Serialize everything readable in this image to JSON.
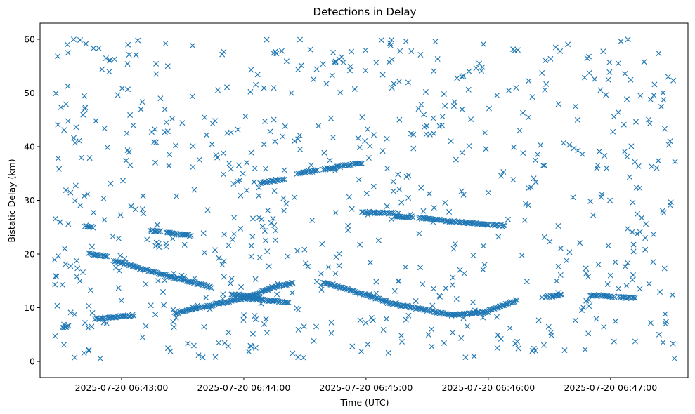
{
  "chart_data": {
    "type": "scatter",
    "title": "Detections in Delay",
    "xlabel": "Time (UTC)",
    "ylabel": "Bistatic Delay (km)",
    "marker": "x",
    "color": "#1f77b4",
    "grid": false,
    "legend": null,
    "x_start": "2025-07-20 06:42:26",
    "x_end": "2025-07-20 06:47:32",
    "xlim": [
      "2025-07-20 06:42:20",
      "2025-07-20 06:47:38"
    ],
    "ylim": [
      -3,
      63
    ],
    "xticks": [
      {
        "value": "2025-07-20 06:43:00",
        "label": "2025-07-20 06:43:00"
      },
      {
        "value": "2025-07-20 06:44:00",
        "label": "2025-07-20 06:44:00"
      },
      {
        "value": "2025-07-20 06:45:00",
        "label": "2025-07-20 06:45:00"
      },
      {
        "value": "2025-07-20 06:46:00",
        "label": "2025-07-20 06:46:00"
      },
      {
        "value": "2025-07-20 06:47:00",
        "label": "2025-07-20 06:47:00"
      }
    ],
    "yticks": [
      0,
      10,
      20,
      30,
      40,
      50,
      60
    ],
    "tracks": [
      {
        "from": "2025-07-20 06:42:31",
        "to": "2025-07-20 06:42:34",
        "y0": 6.2,
        "y1": 6.6
      },
      {
        "from": "2025-07-20 06:42:42",
        "to": "2025-07-20 06:42:46",
        "y0": 25.2,
        "y1": 25.0
      },
      {
        "from": "2025-07-20 06:42:44",
        "to": "2025-07-20 06:42:53",
        "y0": 20.2,
        "y1": 19.4
      },
      {
        "from": "2025-07-20 06:42:47",
        "to": "2025-07-20 06:43:06",
        "y0": 7.9,
        "y1": 8.6
      },
      {
        "from": "2025-07-20 06:42:56",
        "to": "2025-07-20 06:43:06",
        "y0": 18.7,
        "y1": 17.8
      },
      {
        "from": "2025-07-20 06:43:06",
        "to": "2025-07-20 06:43:44",
        "y0": 17.6,
        "y1": 13.8
      },
      {
        "from": "2025-07-20 06:43:14",
        "to": "2025-07-20 06:43:19",
        "y0": 24.4,
        "y1": 24.2
      },
      {
        "from": "2025-07-20 06:43:22",
        "to": "2025-07-20 06:43:34",
        "y0": 24.0,
        "y1": 23.4
      },
      {
        "from": "2025-07-20 06:43:26",
        "to": "2025-07-20 06:44:00",
        "y0": 9.0,
        "y1": 11.8
      },
      {
        "from": "2025-07-20 06:43:54",
        "to": "2025-07-20 06:44:08",
        "y0": 12.6,
        "y1": 11.8
      },
      {
        "from": "2025-07-20 06:44:00",
        "to": "2025-07-20 06:44:22",
        "y0": 11.8,
        "y1": 11.0
      },
      {
        "from": "2025-07-20 06:44:02",
        "to": "2025-07-20 06:44:12",
        "y0": 12.0,
        "y1": 13.4
      },
      {
        "from": "2025-07-20 06:44:12",
        "to": "2025-07-20 06:44:24",
        "y0": 13.6,
        "y1": 14.6
      },
      {
        "from": "2025-07-20 06:44:08",
        "to": "2025-07-20 06:44:20",
        "y0": 33.2,
        "y1": 34.0
      },
      {
        "from": "2025-07-20 06:44:26",
        "to": "2025-07-20 06:44:36",
        "y0": 35.0,
        "y1": 35.6
      },
      {
        "from": "2025-07-20 06:44:39",
        "to": "2025-07-20 06:44:58",
        "y0": 35.8,
        "y1": 37.0
      },
      {
        "from": "2025-07-20 06:44:39",
        "to": "2025-07-20 06:45:10",
        "y0": 14.8,
        "y1": 11.2
      },
      {
        "from": "2025-07-20 06:45:10",
        "to": "2025-07-20 06:45:42",
        "y0": 11.0,
        "y1": 8.6
      },
      {
        "from": "2025-07-20 06:44:58",
        "to": "2025-07-20 06:45:14",
        "y0": 27.8,
        "y1": 27.6
      },
      {
        "from": "2025-07-20 06:45:14",
        "to": "2025-07-20 06:45:23",
        "y0": 27.0,
        "y1": 26.9
      },
      {
        "from": "2025-07-20 06:45:26",
        "to": "2025-07-20 06:46:00",
        "y0": 26.7,
        "y1": 25.4
      },
      {
        "from": "2025-07-20 06:46:02",
        "to": "2025-07-20 06:46:08",
        "y0": 25.4,
        "y1": 25.2
      },
      {
        "from": "2025-07-20 06:45:42",
        "to": "2025-07-20 06:46:00",
        "y0": 8.6,
        "y1": 9.2
      },
      {
        "from": "2025-07-20 06:46:00",
        "to": "2025-07-20 06:46:14",
        "y0": 9.4,
        "y1": 11.4
      },
      {
        "from": "2025-07-20 06:46:28",
        "to": "2025-07-20 06:46:36",
        "y0": 12.0,
        "y1": 12.4
      },
      {
        "from": "2025-07-20 06:46:50",
        "to": "2025-07-20 06:47:02",
        "y0": 12.4,
        "y1": 12.0
      },
      {
        "from": "2025-07-20 06:47:04",
        "to": "2025-07-20 06:47:12",
        "y0": 12.0,
        "y1": 11.8
      }
    ],
    "clutter_count": 720,
    "clutter_y_range": [
      0.5,
      60
    ]
  }
}
